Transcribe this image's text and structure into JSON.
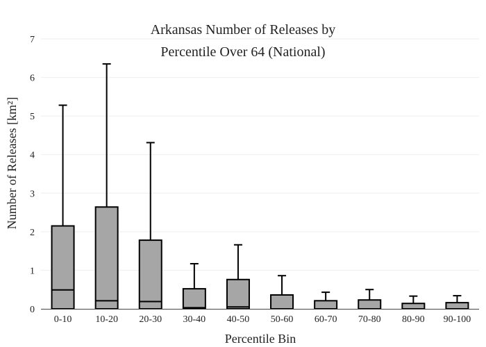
{
  "chart_data": {
    "type": "box",
    "title_lines": [
      "Arkansas Number of Releases by",
      "Percentile Over 64 (National)"
    ],
    "xlabel": "Percentile Bin",
    "ylabel": "Number of Releases  [km²]",
    "ylim": [
      0,
      7
    ],
    "y_ticks": [
      0,
      1,
      2,
      3,
      4,
      5,
      6,
      7
    ],
    "grid": true,
    "box_fill": "#a6a6a6",
    "categories": [
      "0-10",
      "10-20",
      "20-30",
      "30-40",
      "40-50",
      "50-60",
      "60-70",
      "70-80",
      "80-90",
      "90-100"
    ],
    "boxes": [
      {
        "label": "0-10",
        "min": 0,
        "q1": 0,
        "median": 0.49,
        "q3": 2.15,
        "max": 5.28
      },
      {
        "label": "10-20",
        "min": 0,
        "q1": 0,
        "median": 0.21,
        "q3": 2.64,
        "max": 6.35
      },
      {
        "label": "20-30",
        "min": 0,
        "q1": 0,
        "median": 0.19,
        "q3": 1.78,
        "max": 4.31
      },
      {
        "label": "30-40",
        "min": 0,
        "q1": 0,
        "median": 0.03,
        "q3": 0.52,
        "max": 1.17
      },
      {
        "label": "40-50",
        "min": 0,
        "q1": 0,
        "median": 0.05,
        "q3": 0.76,
        "max": 1.66
      },
      {
        "label": "50-60",
        "min": 0,
        "q1": 0,
        "median": 0.0,
        "q3": 0.36,
        "max": 0.86
      },
      {
        "label": "60-70",
        "min": 0,
        "q1": 0,
        "median": 0.0,
        "q3": 0.21,
        "max": 0.43
      },
      {
        "label": "70-80",
        "min": 0,
        "q1": 0,
        "median": 0.0,
        "q3": 0.23,
        "max": 0.5
      },
      {
        "label": "80-90",
        "min": 0,
        "q1": 0,
        "median": 0.0,
        "q3": 0.14,
        "max": 0.33
      },
      {
        "label": "90-100",
        "min": 0,
        "q1": 0,
        "median": 0.0,
        "q3": 0.16,
        "max": 0.34
      }
    ]
  }
}
